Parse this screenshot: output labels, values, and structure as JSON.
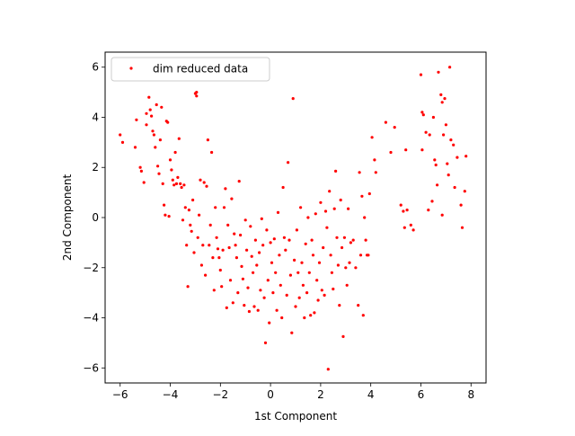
{
  "chart_data": {
    "type": "scatter",
    "xlabel": "1st Component",
    "ylabel": "2nd Component",
    "xlim": [
      -6.6,
      8.6
    ],
    "ylim": [
      -6.6,
      6.6
    ],
    "xticks": [
      -6,
      -4,
      -2,
      0,
      2,
      4,
      6,
      8
    ],
    "yticks": [
      -6,
      -4,
      -2,
      0,
      2,
      4,
      6
    ],
    "xtick_labels": [
      "−6",
      "−4",
      "−2",
      "0",
      "2",
      "4",
      "6",
      "8"
    ],
    "ytick_labels": [
      "−6",
      "−4",
      "−2",
      "0",
      "2",
      "4",
      "6"
    ],
    "grid": false,
    "legend": {
      "position": "upper-left",
      "entries": [
        "dim reduced data"
      ]
    },
    "series": [
      {
        "name": "dim reduced data",
        "color": "#ff0000",
        "marker": "dot",
        "points": [
          [
            -6.0,
            3.3
          ],
          [
            -5.9,
            3.0
          ],
          [
            -5.4,
            2.8
          ],
          [
            -5.35,
            3.9
          ],
          [
            -5.2,
            2.0
          ],
          [
            -5.15,
            1.85
          ],
          [
            -5.05,
            1.4
          ],
          [
            -4.95,
            4.15
          ],
          [
            -4.95,
            3.7
          ],
          [
            -4.85,
            4.8
          ],
          [
            -4.8,
            4.3
          ],
          [
            -4.75,
            4.05
          ],
          [
            -4.7,
            3.45
          ],
          [
            -4.65,
            3.3
          ],
          [
            -4.6,
            2.8
          ],
          [
            -4.55,
            4.5
          ],
          [
            -4.5,
            2.05
          ],
          [
            -4.45,
            1.75
          ],
          [
            -4.4,
            3.1
          ],
          [
            -4.35,
            4.4
          ],
          [
            -4.3,
            1.35
          ],
          [
            -4.25,
            0.5
          ],
          [
            -4.2,
            0.1
          ],
          [
            -4.15,
            3.85
          ],
          [
            -4.1,
            3.8
          ],
          [
            -4.05,
            0.05
          ],
          [
            -4.0,
            2.3
          ],
          [
            -3.95,
            1.9
          ],
          [
            -3.9,
            1.5
          ],
          [
            -3.85,
            1.3
          ],
          [
            -3.8,
            2.6
          ],
          [
            -3.75,
            1.35
          ],
          [
            -3.7,
            1.6
          ],
          [
            -3.65,
            3.15
          ],
          [
            -3.6,
            1.35
          ],
          [
            -3.55,
            1.2
          ],
          [
            -3.5,
            -0.1
          ],
          [
            -3.45,
            1.3
          ],
          [
            -3.4,
            0.4
          ],
          [
            -3.35,
            -1.1
          ],
          [
            -3.3,
            -2.75
          ],
          [
            -3.25,
            0.3
          ],
          [
            -3.2,
            -0.3
          ],
          [
            -3.15,
            -0.55
          ],
          [
            -3.1,
            0.7
          ],
          [
            -3.05,
            -1.4
          ],
          [
            -3.0,
            4.95
          ],
          [
            -2.95,
            4.85
          ],
          [
            -2.95,
            5.0
          ],
          [
            -2.9,
            -0.8
          ],
          [
            -2.85,
            0.1
          ],
          [
            -2.8,
            1.5
          ],
          [
            -2.75,
            -1.9
          ],
          [
            -2.7,
            -1.1
          ],
          [
            -2.65,
            1.4
          ],
          [
            -2.6,
            -2.3
          ],
          [
            -2.55,
            1.25
          ],
          [
            -2.5,
            3.1
          ],
          [
            -2.45,
            -1.1
          ],
          [
            -2.4,
            -0.3
          ],
          [
            -2.35,
            2.6
          ],
          [
            -2.3,
            -1.6
          ],
          [
            -2.25,
            -2.9
          ],
          [
            -2.2,
            0.4
          ],
          [
            -2.15,
            -0.8
          ],
          [
            -2.1,
            -1.25
          ],
          [
            -2.05,
            -1.6
          ],
          [
            -2.0,
            -2.1
          ],
          [
            -1.95,
            -2.75
          ],
          [
            -1.9,
            -1.3
          ],
          [
            -1.85,
            0.4
          ],
          [
            -1.8,
            1.15
          ],
          [
            -1.75,
            -3.6
          ],
          [
            -1.7,
            -0.3
          ],
          [
            -1.65,
            -1.2
          ],
          [
            -1.6,
            -2.5
          ],
          [
            -1.55,
            0.75
          ],
          [
            -1.5,
            -3.4
          ],
          [
            -1.45,
            -0.65
          ],
          [
            -1.4,
            -1.1
          ],
          [
            -1.35,
            -1.6
          ],
          [
            -1.3,
            -3.0
          ],
          [
            -1.25,
            1.45
          ],
          [
            -1.2,
            -0.7
          ],
          [
            -1.15,
            -1.95
          ],
          [
            -1.1,
            -2.45
          ],
          [
            -1.05,
            -3.5
          ],
          [
            -1.0,
            -0.1
          ],
          [
            -0.95,
            -1.3
          ],
          [
            -0.9,
            -2.8
          ],
          [
            -0.85,
            -3.75
          ],
          [
            -0.8,
            -0.35
          ],
          [
            -0.75,
            -1.55
          ],
          [
            -0.7,
            -2.2
          ],
          [
            -0.65,
            -3.55
          ],
          [
            -0.6,
            -0.9
          ],
          [
            -0.55,
            -1.9
          ],
          [
            -0.5,
            -3.7
          ],
          [
            -0.45,
            -1.4
          ],
          [
            -0.4,
            -2.9
          ],
          [
            -0.35,
            -0.05
          ],
          [
            -0.3,
            -1.1
          ],
          [
            -0.25,
            -3.2
          ],
          [
            -0.2,
            -5.0
          ],
          [
            -0.15,
            -0.5
          ],
          [
            -0.1,
            -2.5
          ],
          [
            -0.05,
            -4.2
          ],
          [
            0.0,
            -1.0
          ],
          [
            0.05,
            -1.8
          ],
          [
            0.1,
            -3.0
          ],
          [
            0.15,
            -0.85
          ],
          [
            0.2,
            -2.2
          ],
          [
            0.25,
            -3.7
          ],
          [
            0.3,
            0.2
          ],
          [
            0.35,
            -1.5
          ],
          [
            0.4,
            -2.7
          ],
          [
            0.45,
            -4.0
          ],
          [
            0.5,
            1.2
          ],
          [
            0.55,
            -0.8
          ],
          [
            0.6,
            -1.3
          ],
          [
            0.65,
            -3.1
          ],
          [
            0.7,
            2.2
          ],
          [
            0.75,
            -0.9
          ],
          [
            0.8,
            -2.3
          ],
          [
            0.85,
            -4.6
          ],
          [
            0.9,
            4.75
          ],
          [
            0.95,
            -1.7
          ],
          [
            1.0,
            -3.55
          ],
          [
            1.05,
            -0.5
          ],
          [
            1.1,
            -2.2
          ],
          [
            1.15,
            -3.2
          ],
          [
            1.2,
            0.4
          ],
          [
            1.25,
            -1.8
          ],
          [
            1.3,
            -2.7
          ],
          [
            1.35,
            -4.0
          ],
          [
            1.4,
            -1.05
          ],
          [
            1.45,
            -3.0
          ],
          [
            1.5,
            0.0
          ],
          [
            1.55,
            -2.2
          ],
          [
            1.6,
            -3.9
          ],
          [
            1.65,
            -0.9
          ],
          [
            1.7,
            -1.5
          ],
          [
            1.75,
            -3.8
          ],
          [
            1.8,
            0.15
          ],
          [
            1.85,
            -2.5
          ],
          [
            1.9,
            -3.3
          ],
          [
            1.95,
            -1.8
          ],
          [
            2.0,
            0.6
          ],
          [
            2.05,
            -2.9
          ],
          [
            2.1,
            -1.2
          ],
          [
            2.15,
            -3.1
          ],
          [
            2.2,
            0.25
          ],
          [
            2.25,
            -0.4
          ],
          [
            2.3,
            -6.05
          ],
          [
            2.35,
            1.05
          ],
          [
            2.4,
            -1.5
          ],
          [
            2.45,
            -2.2
          ],
          [
            2.5,
            -2.85
          ],
          [
            2.55,
            0.35
          ],
          [
            2.6,
            1.85
          ],
          [
            2.65,
            -0.8
          ],
          [
            2.7,
            -1.9
          ],
          [
            2.75,
            -3.5
          ],
          [
            2.8,
            0.7
          ],
          [
            2.85,
            -1.2
          ],
          [
            2.9,
            -4.75
          ],
          [
            2.95,
            -0.8
          ],
          [
            3.0,
            -2.0
          ],
          [
            3.05,
            -2.7
          ],
          [
            3.1,
            0.35
          ],
          [
            3.15,
            -1.8
          ],
          [
            3.2,
            -1.0
          ],
          [
            3.3,
            -0.9
          ],
          [
            3.4,
            -2.0
          ],
          [
            3.5,
            -3.5
          ],
          [
            3.55,
            1.8
          ],
          [
            3.6,
            -1.5
          ],
          [
            3.65,
            0.85
          ],
          [
            3.7,
            -3.9
          ],
          [
            3.75,
            0.0
          ],
          [
            3.8,
            -0.9
          ],
          [
            3.85,
            -1.5
          ],
          [
            3.9,
            -1.5
          ],
          [
            3.95,
            0.95
          ],
          [
            4.05,
            3.2
          ],
          [
            4.15,
            2.3
          ],
          [
            4.2,
            1.8
          ],
          [
            4.6,
            3.8
          ],
          [
            4.8,
            2.6
          ],
          [
            4.95,
            3.6
          ],
          [
            5.2,
            0.5
          ],
          [
            5.3,
            0.25
          ],
          [
            5.35,
            -0.4
          ],
          [
            5.4,
            2.7
          ],
          [
            5.45,
            0.3
          ],
          [
            5.6,
            -0.3
          ],
          [
            5.7,
            -0.5
          ],
          [
            6.0,
            5.7
          ],
          [
            6.05,
            4.2
          ],
          [
            6.05,
            2.7
          ],
          [
            6.1,
            4.1
          ],
          [
            6.2,
            3.4
          ],
          [
            6.3,
            0.3
          ],
          [
            6.35,
            3.3
          ],
          [
            6.45,
            0.65
          ],
          [
            6.5,
            4.0
          ],
          [
            6.55,
            2.3
          ],
          [
            6.6,
            2.1
          ],
          [
            6.65,
            1.3
          ],
          [
            6.7,
            5.8
          ],
          [
            6.8,
            4.9
          ],
          [
            6.85,
            4.6
          ],
          [
            6.85,
            0.1
          ],
          [
            6.9,
            3.3
          ],
          [
            6.95,
            4.75
          ],
          [
            7.0,
            3.7
          ],
          [
            7.05,
            2.15
          ],
          [
            7.1,
            1.7
          ],
          [
            7.15,
            6.0
          ],
          [
            7.2,
            3.1
          ],
          [
            7.3,
            2.9
          ],
          [
            7.35,
            1.2
          ],
          [
            7.45,
            2.4
          ],
          [
            7.6,
            0.5
          ],
          [
            7.65,
            -0.4
          ],
          [
            7.75,
            1.05
          ],
          [
            7.8,
            2.45
          ]
        ]
      }
    ]
  }
}
